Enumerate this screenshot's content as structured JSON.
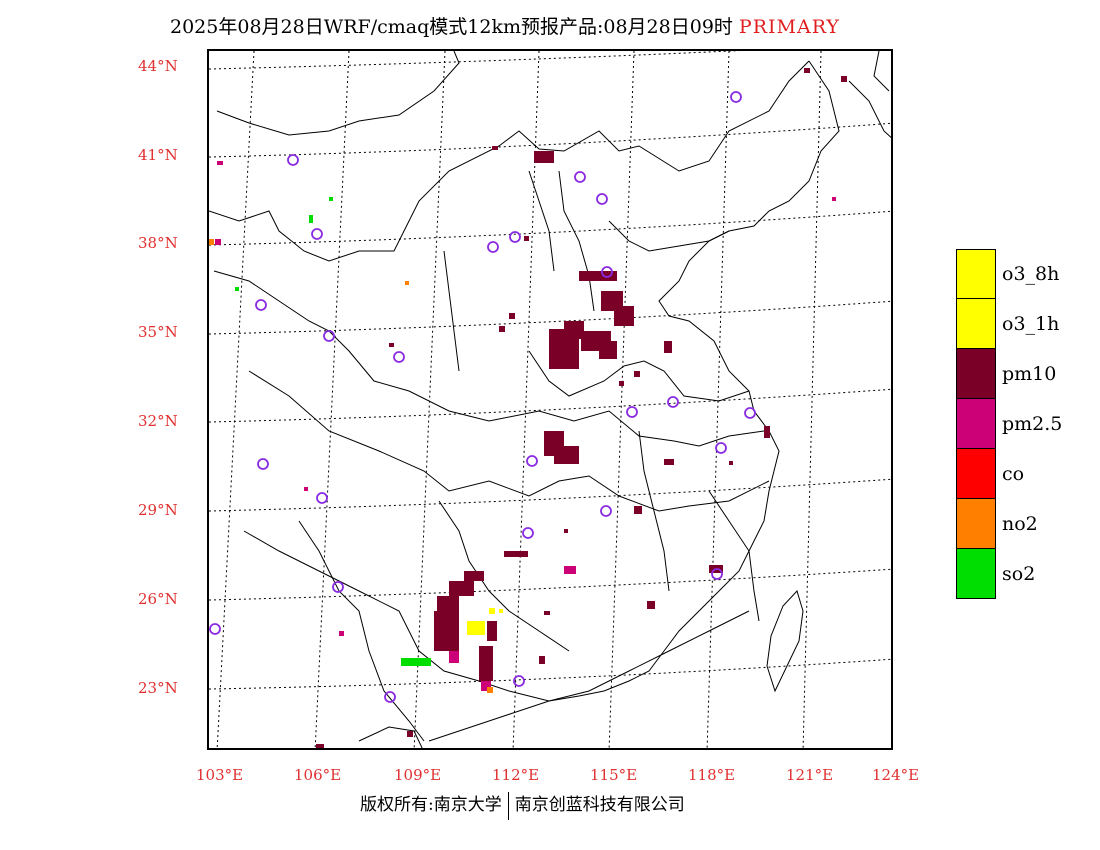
{
  "title": {
    "text": "2025年08月28日WRF/cmaq模式12km预报产品:08月28日09时",
    "tag": "PRIMARY"
  },
  "axes": {
    "latitudes": [
      "44°N",
      "41°N",
      "38°N",
      "35°N",
      "32°N",
      "29°N",
      "26°N",
      "23°N"
    ],
    "longitudes": [
      "103°E",
      "106°E",
      "109°E",
      "112°E",
      "115°E",
      "118°E",
      "121°E",
      "124°E"
    ]
  },
  "legend": {
    "items": [
      {
        "label": "o3_8h",
        "color": "#ffff00"
      },
      {
        "label": "o3_1h",
        "color": "#ffff00"
      },
      {
        "label": "pm10",
        "color": "#7a0028"
      },
      {
        "label": "pm2.5",
        "color": "#cc0077"
      },
      {
        "label": "co",
        "color": "#ff0000"
      },
      {
        "label": "no2",
        "color": "#ff7f00"
      },
      {
        "label": "so2",
        "color": "#00dd00"
      }
    ]
  },
  "colors": {
    "accent": "#e03030",
    "pm10": "#7a0028",
    "pm25": "#cc0077",
    "o3": "#ffff00",
    "no2": "#ff7f00",
    "so2": "#00dd00",
    "station_marker": "#8a2be2"
  },
  "copyright": {
    "left": "版权所有:南京大学",
    "right": "南京创蓝科技有限公司"
  }
}
